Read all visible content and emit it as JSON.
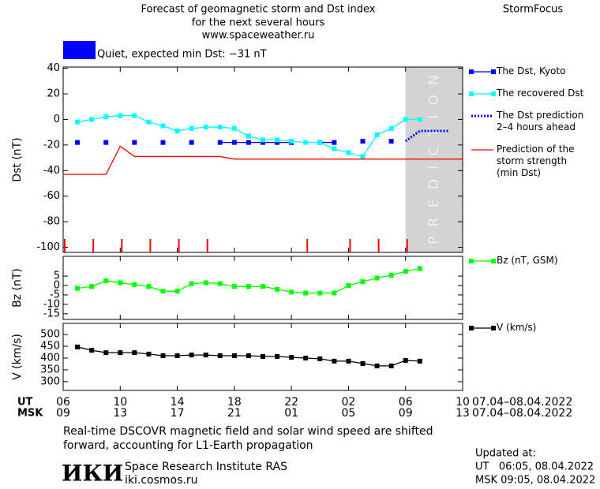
{
  "header": {
    "title": [
      "Forecast of geomagnetic storm and Dst index",
      "for the next several hours",
      "www.spaceweather.ru"
    ],
    "brand": "StormFocus"
  },
  "chart_data": [
    {
      "type": "line",
      "ylabel": "Dst (nT)",
      "xlim": [
        0,
        28
      ],
      "ylim": [
        -104,
        41
      ],
      "yticks": [
        40,
        20,
        0,
        -20,
        -40,
        -60,
        -80,
        -100
      ],
      "status": {
        "color": "#0000ff",
        "text": "Quiet, expected min Dst: −31 nT"
      },
      "prediction_area": {
        "x": [
          24,
          28
        ],
        "color": "#d3d3d3",
        "label": "PREDICTION"
      },
      "event_markers": {
        "x": [
          0,
          2,
          4,
          6,
          8,
          10,
          17,
          20,
          22,
          24
        ],
        "color": "#ff0000"
      },
      "series": [
        {
          "name": "The Dst, Kyoto",
          "color": "#0000ff",
          "marker": "square",
          "dash": "solid",
          "x": [
            1,
            2,
            3,
            4,
            5,
            6,
            7,
            8,
            9,
            10,
            11,
            12,
            13,
            14,
            15,
            16,
            17,
            18,
            19,
            20,
            21,
            22,
            23
          ],
          "values": [
            -18,
            null,
            -18,
            null,
            -18,
            null,
            -18,
            null,
            -18,
            null,
            -18,
            -18,
            -18,
            -18,
            -18,
            -18,
            null,
            -18,
            -18,
            null,
            -17,
            null,
            -17
          ]
        },
        {
          "name": "The recovered Dst",
          "color": "#00ffff",
          "marker": "square",
          "dash": "solid",
          "x": [
            1,
            2,
            3,
            4,
            5,
            6,
            7,
            8,
            9,
            10,
            11,
            12,
            13,
            14,
            15,
            16,
            17,
            18,
            19,
            20,
            21,
            22,
            23,
            24,
            25
          ],
          "values": [
            -2,
            0,
            2,
            3,
            3,
            -2,
            -5,
            -9,
            -7,
            -6,
            -6,
            -7,
            -13,
            -16,
            -16,
            -17,
            -18,
            -18,
            -23,
            -26,
            -29,
            -12,
            -7,
            0,
            0
          ]
        },
        {
          "name": "The Dst prediction\n2–4 hours ahead",
          "color": "#0000ff",
          "marker": "none",
          "dash": "dotted",
          "x": [
            24,
            25,
            26,
            27
          ],
          "values": [
            -17,
            -9,
            -9,
            -9
          ]
        },
        {
          "name": "Prediction of the\nstorm strength\n(min Dst)",
          "color": "#ff0000",
          "marker": "none",
          "dash": "solid",
          "x": [
            0,
            3,
            4,
            5,
            11,
            12,
            28
          ],
          "values": [
            -43,
            -43,
            -21,
            -29,
            -29,
            -31,
            -31
          ]
        }
      ]
    },
    {
      "type": "line",
      "ylabel": "Bz (nT)",
      "xlim": [
        0,
        28
      ],
      "ylim": [
        -18,
        15.5
      ],
      "yticks": [
        5,
        0,
        -5,
        -10,
        -15
      ],
      "series": [
        {
          "name": "Bz (nT, GSM)",
          "color": "#00ff00",
          "marker": "square",
          "dash": "solid",
          "x": [
            1,
            2,
            3,
            4,
            5,
            6,
            7,
            8,
            9,
            10,
            11,
            12,
            13,
            14,
            15,
            16,
            17,
            18,
            19,
            20,
            21,
            22,
            23,
            24,
            25
          ],
          "values": [
            -1.5,
            -0.5,
            2.5,
            1.5,
            0.5,
            -0.5,
            -3,
            -3,
            1,
            1.5,
            1,
            -0.5,
            -0.5,
            -0.5,
            -2,
            -3.5,
            -4,
            -4,
            -4,
            0,
            2,
            4,
            5.5,
            7.5,
            9
          ]
        }
      ]
    },
    {
      "type": "line",
      "ylabel": "V (km/s)",
      "xlim": [
        0,
        28
      ],
      "ylim": [
        263,
        547
      ],
      "yticks": [
        500,
        450,
        400,
        350,
        300
      ],
      "xlabel": "UT",
      "x2label": "MSK",
      "xticks": [
        {
          "value": 0,
          "label": "06"
        },
        {
          "value": 4,
          "label": "10"
        },
        {
          "value": 8,
          "label": "14"
        },
        {
          "value": 12,
          "label": "18"
        },
        {
          "value": 16,
          "label": "22"
        },
        {
          "value": 20,
          "label": "02"
        },
        {
          "value": 24,
          "label": "06"
        },
        {
          "value": 28,
          "label": "10"
        }
      ],
      "x2ticks": [
        {
          "value": 0,
          "label": "09"
        },
        {
          "value": 4,
          "label": "13"
        },
        {
          "value": 8,
          "label": "17"
        },
        {
          "value": 12,
          "label": "21"
        },
        {
          "value": 16,
          "label": "01"
        },
        {
          "value": 20,
          "label": "05"
        },
        {
          "value": 24,
          "label": "09"
        },
        {
          "value": 28,
          "label": "13"
        }
      ],
      "date_range": [
        "07.04–08.04.2022",
        "07.04–08.04.2022"
      ],
      "series": [
        {
          "name": "V (km/s)",
          "color": "#000000",
          "marker": "square",
          "dash": "solid",
          "x": [
            1,
            2,
            3,
            4,
            5,
            6,
            7,
            8,
            9,
            10,
            11,
            12,
            13,
            14,
            15,
            16,
            17,
            18,
            19,
            20,
            21,
            22,
            23,
            24,
            25
          ],
          "values": [
            447,
            433,
            423,
            423,
            423,
            417,
            410,
            410,
            413,
            413,
            410,
            410,
            410,
            407,
            407,
            403,
            400,
            397,
            387,
            387,
            377,
            367,
            367,
            390,
            387
          ]
        }
      ]
    }
  ],
  "footer": {
    "note": [
      "Real-time DSCOVR magnetic field and solar wind speed are shifted",
      "forward, accounting for L1-Earth propagation"
    ],
    "logo": "ИКИ",
    "institute": "Space Research Institute RAS",
    "site": "iki.cosmos.ru",
    "updated": [
      "Updated at:",
      "UT   06:05, 08.04.2022",
      "MSK 09:05, 08.04.2022"
    ]
  }
}
